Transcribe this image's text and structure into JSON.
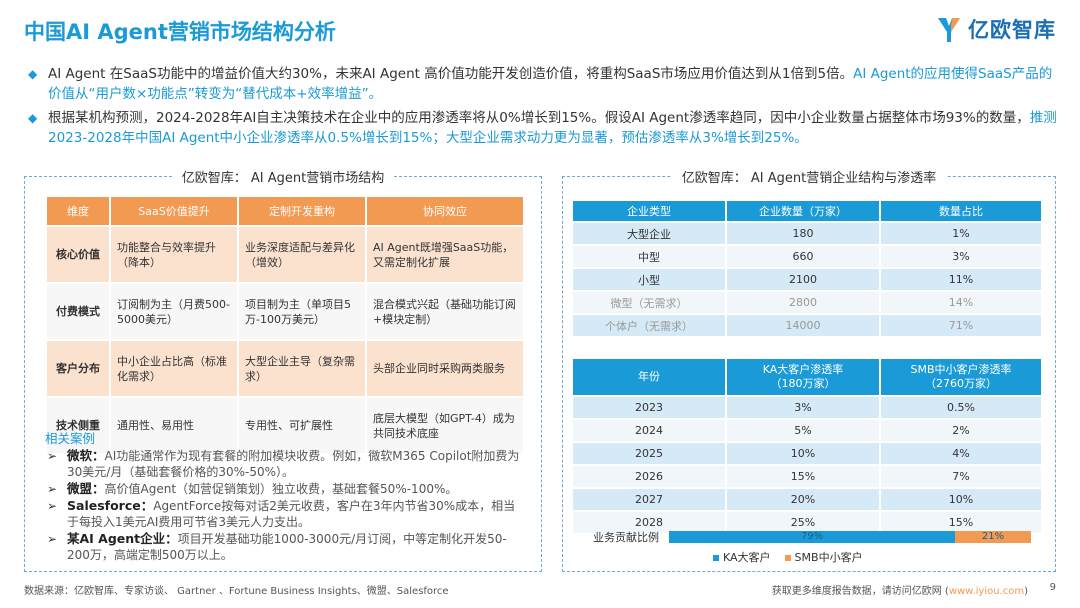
{
  "title": "中国AI Agent营销市场结构分析",
  "logo": {
    "text": "亿欧智库",
    "brand_color": "#1b6fb5",
    "accent_color": "#1a9ad6"
  },
  "bullets": [
    {
      "icon": "diamond-bullet-icon",
      "text": "AI Agent 在SaaS功能中的增益价值大约30%，未来AI Agent 高价值功能开发创造价值，将重构SaaS市场应用价值达到从1倍到5倍。",
      "highlight": "AI Agent的应用使得SaaS产品的价值从“用户数×功能点”转变为“替代成本+效率增益”。"
    },
    {
      "icon": "diamond-bullet-icon",
      "text": "根据某机构预测，2024-2028年AI自主决策技术在企业中的应用渗透率将从0%增长到15%。假设AI Agent渗透率趋同，因中小企业数量占据整体市场93%的数量，",
      "highlight": "推测2023-2028年中国AI Agent中小企业渗透率从0.5%增长到15%；大型企业需求动力更为显著，预估渗透率从3%增长到25%。"
    }
  ],
  "left_panel": {
    "title": "亿欧智库： AI Agent营销市场结构",
    "table": {
      "headers": [
        "维度",
        "SaaS价值提升",
        "定制开发重构",
        "协同效应"
      ],
      "rows": [
        {
          "dim": "核心价值",
          "c1": "功能整合与效率提升（降本）",
          "c2": "业务深度适配与差异化（增效）",
          "c3": "AI Agent既增强SaaS功能，又需定制化扩展"
        },
        {
          "dim": "付费模式",
          "c1": "订阅制为主（月费500-5000美元）",
          "c2": "项目制为主（单项目5万-100万美元）",
          "c3": "混合模式兴起（基础功能订阅+模块定制）"
        },
        {
          "dim": "客户分布",
          "c1": "中小企业占比高（标准化需求）",
          "c2": "大型企业主导（复杂需求）",
          "c3": "头部企业同时采购两类服务"
        },
        {
          "dim": "技术侧重",
          "c1": "通用性、易用性",
          "c2": "专用性、可扩展性",
          "c3": "底层大模型（如GPT-4）成为共同技术底座"
        }
      ]
    },
    "cases": {
      "title": "相关案例",
      "items": [
        {
          "name": "微软",
          "text": "AI功能通常作为现有套餐的附加模块收费。例如，微软M365 Copilot附加费为30美元/月（基础套餐价格的30%-50%）。"
        },
        {
          "name": "微盟",
          "text": "高价值Agent（如营促销策划）独立收费，基础套餐50%-100%。"
        },
        {
          "name": "Salesforce",
          "text": "AgentForce按每对话2美元收费，客户在3年内节省30%成本，相当于每投入1美元AI费用可节省3美元人力支出。"
        },
        {
          "name": "某AI Agent企业",
          "text": "项目开发基础功能1000-3000元/月订阅，中等定制化开发50-200万，高端定制500万以上。"
        }
      ]
    }
  },
  "right_panel": {
    "title": "亿欧智库： AI Agent营销企业结构与渗透率",
    "table1": {
      "headers": [
        "企业类型",
        "企业数量（万家）",
        "数量占比"
      ],
      "rows": [
        {
          "type": "大型企业",
          "count": "180",
          "share": "1%",
          "muted": false
        },
        {
          "type": "中型",
          "count": "660",
          "share": "3%",
          "muted": false
        },
        {
          "type": "小型",
          "count": "2100",
          "share": "11%",
          "muted": false
        },
        {
          "type": "微型（无需求）",
          "count": "2800",
          "share": "14%",
          "muted": true
        },
        {
          "type": "个体户（无需求）",
          "count": "14000",
          "share": "71%",
          "muted": true
        }
      ]
    },
    "table2": {
      "headers": [
        "年份",
        "KA大客户渗透率",
        "SMB中小客户渗透率"
      ],
      "subheaders": [
        "",
        "（180万家）",
        "（2760万家）"
      ],
      "rows": [
        {
          "year": "2023",
          "ka": "3%",
          "smb": "0.5%"
        },
        {
          "year": "2024",
          "ka": "5%",
          "smb": "2%"
        },
        {
          "year": "2025",
          "ka": "10%",
          "smb": "4%"
        },
        {
          "year": "2026",
          "ka": "15%",
          "smb": "7%"
        },
        {
          "year": "2027",
          "ka": "20%",
          "smb": "10%"
        },
        {
          "year": "2028",
          "ka": "25%",
          "smb": "15%"
        }
      ]
    },
    "contribution": {
      "label": "业务贡献比例",
      "segments": [
        {
          "name": "KA大客户",
          "value": 79,
          "label": "79%",
          "color": "#1a9ad6"
        },
        {
          "name": "SMB中小客户",
          "value": 21,
          "label": "21%",
          "color": "#f39a52"
        }
      ]
    }
  },
  "footer": {
    "source": "数据来源：亿欧智库、专家访谈、 Gartner 、Fortune Business Insights、微盟、Salesforce",
    "more": "获取更多维度报告数据，请访问亿欧网 (",
    "link": "www.iyiou.com",
    "more_end": ")",
    "page": "9"
  }
}
